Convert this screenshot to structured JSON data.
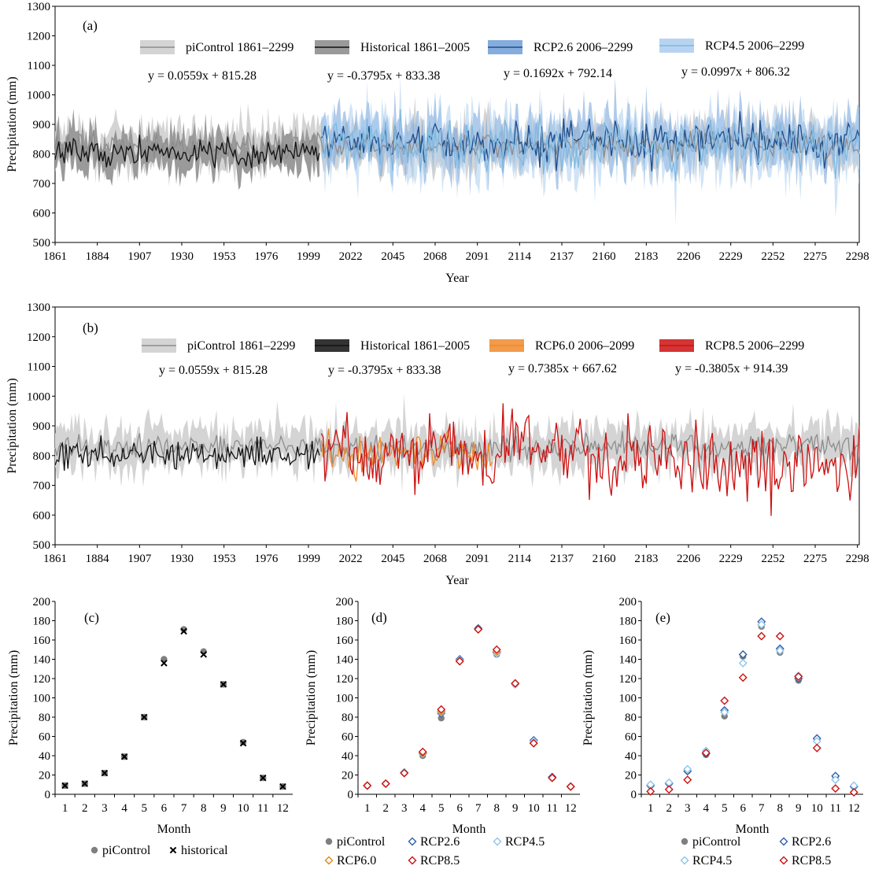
{
  "figure_description": "Precipitation time series and monthly climatology",
  "colors": {
    "picontrol_band": "#d4d4d4",
    "picontrol_line": "#8c8c8c",
    "historical_band": "#9a9a9a",
    "historical_line": "#111111",
    "rcp26_band": "#6f9fd8",
    "rcp26_line": "#1f4e8c",
    "rcp45_band": "#a9cdee",
    "rcp45_line": "#7fb8e0",
    "rcp60": "#f0892a",
    "rcp85": "#cc1111"
  },
  "chart_data": [
    {
      "id": "a",
      "type": "line",
      "panel_label": "(a)",
      "xlabel": "Year",
      "ylabel": "Precipitation (mm)",
      "xlim": [
        1861,
        2299
      ],
      "ylim": [
        500,
        1300
      ],
      "xticks": [
        1861,
        1884,
        1907,
        1930,
        1953,
        1976,
        1999,
        2022,
        2045,
        2068,
        2091,
        2114,
        2137,
        2160,
        2183,
        2206,
        2229,
        2252,
        2275,
        2298
      ],
      "yticks": [
        500,
        600,
        700,
        800,
        900,
        1000,
        1100,
        1200,
        1300
      ],
      "series": [
        {
          "key": "pic",
          "name": "piControl 1861–2299",
          "start": 1861,
          "end": 2299,
          "mean": 828,
          "sd": 22,
          "band_sd": 45,
          "seed": 11,
          "line_color": "#8c8c8c",
          "band_color": "#d4d4d4",
          "legend_style": "band",
          "band_opacity": 1.0
        },
        {
          "key": "his",
          "name": "Historical 1861–2005",
          "start": 1861,
          "end": 2005,
          "mean": 805,
          "sd": 24,
          "band_sd": 40,
          "seed": 23,
          "line_color": "#111111",
          "band_color": "#9a9a9a",
          "legend_style": "band",
          "band_opacity": 1.0
        },
        {
          "key": "r26",
          "name": "RCP2.6 2006–2299",
          "start": 2006,
          "end": 2299,
          "mean": 842,
          "sd": 35,
          "band_sd": 48,
          "seed": 37,
          "line_color": "#1f4e8c",
          "band_color": "#6f9fd8",
          "legend_style": "band",
          "band_opacity": 0.55
        },
        {
          "key": "r45",
          "name": "RCP4.5 2006–2299",
          "start": 2006,
          "end": 2299,
          "mean": 828,
          "sd": 45,
          "band_sd": 55,
          "seed": 53,
          "line_color": "#7fb8e0",
          "band_color": "#a9cdee",
          "legend_style": "band",
          "band_opacity": 0.55
        }
      ],
      "regression": [
        {
          "text": "y = 0.0559x + 815.28",
          "slope": 0.0559,
          "intercept": 815.28
        },
        {
          "text": "y = -0.3795x + 833.38",
          "slope": -0.3795,
          "intercept": 833.38
        },
        {
          "text": "y = 0.1692x + 792.14",
          "slope": 0.1692,
          "intercept": 792.14
        },
        {
          "text": "y = 0.0997x + 806.32",
          "slope": 0.0997,
          "intercept": 806.32
        }
      ]
    },
    {
      "id": "b",
      "type": "line",
      "panel_label": "(b)",
      "xlabel": "Year",
      "ylabel": "Precipitation (mm)",
      "xlim": [
        1861,
        2299
      ],
      "ylim": [
        500,
        1300
      ],
      "xticks": [
        1861,
        1884,
        1907,
        1930,
        1953,
        1976,
        1999,
        2022,
        2045,
        2068,
        2091,
        2114,
        2137,
        2160,
        2183,
        2206,
        2229,
        2252,
        2275,
        2298
      ],
      "yticks": [
        500,
        600,
        700,
        800,
        900,
        1000,
        1100,
        1200,
        1300
      ],
      "series": [
        {
          "key": "pic",
          "name": "piControl 1861–2299",
          "start": 1861,
          "end": 2299,
          "mean": 828,
          "sd": 22,
          "band_sd": 45,
          "seed": 11,
          "line_color": "#8c8c8c",
          "band_color": "#d4d4d4",
          "legend_style": "band",
          "band_opacity": 1.0
        },
        {
          "key": "his",
          "name": "Historical 1861–2005",
          "start": 1861,
          "end": 2005,
          "mean": 805,
          "sd": 24,
          "band_sd": 0,
          "seed": 23,
          "line_color": "#111111",
          "band_color": "#9a9a9a",
          "legend_style": "line",
          "band_opacity": 0
        },
        {
          "key": "r60",
          "name": "RCP6.0 2006–2099",
          "start": 2006,
          "end": 2099,
          "mean": 815,
          "sd": 38,
          "band_sd": 0,
          "seed": 71,
          "line_color": "#f0892a",
          "band_color": "#f0892a",
          "legend_style": "line",
          "band_opacity": 0
        },
        {
          "key": "r85",
          "name": "RCP8.5 2006–2299",
          "start": 2006,
          "end": 2299,
          "mean": 800,
          "sd": 60,
          "band_sd": 0,
          "seed": 89,
          "line_color": "#cc1111",
          "band_color": "#cc1111",
          "legend_style": "line",
          "band_opacity": 0
        }
      ],
      "regression": [
        {
          "text": "y = 0.0559x + 815.28",
          "slope": 0.0559,
          "intercept": 815.28
        },
        {
          "text": "y = -0.3795x + 833.38",
          "slope": -0.3795,
          "intercept": 833.38
        },
        {
          "text": "y = 0.7385x + 667.62",
          "slope": 0.7385,
          "intercept": 667.62
        },
        {
          "text": "y = -0.3805x + 914.39",
          "slope": -0.3805,
          "intercept": 914.39
        }
      ]
    },
    {
      "id": "c",
      "type": "scatter",
      "panel_label": "(c)",
      "xlabel": "Month",
      "ylabel": "Precipitation (mm)",
      "categories": [
        "1",
        "2",
        "3",
        "4",
        "5",
        "6",
        "7",
        "8",
        "9",
        "10",
        "11",
        "12"
      ],
      "ylim": [
        0,
        200
      ],
      "yticks": [
        0,
        20,
        40,
        60,
        80,
        100,
        120,
        140,
        160,
        180,
        200
      ],
      "series": [
        {
          "name": "piControl",
          "marker": "circle",
          "color": "#7f7f7f",
          "values": [
            9,
            11,
            22,
            39,
            80,
            140,
            171,
            148,
            114,
            54,
            17,
            8
          ]
        },
        {
          "name": "historical",
          "marker": "x",
          "color": "#000000",
          "values": [
            9,
            11,
            22,
            39,
            80,
            136,
            169,
            145,
            114,
            53,
            17,
            8
          ]
        }
      ]
    },
    {
      "id": "d",
      "type": "scatter",
      "panel_label": "(d)",
      "xlabel": "Month",
      "ylabel": "Precipitation (mm)",
      "categories": [
        "1",
        "2",
        "3",
        "4",
        "5",
        "6",
        "7",
        "8",
        "9",
        "10",
        "11",
        "12"
      ],
      "ylim": [
        0,
        200
      ],
      "yticks": [
        0,
        20,
        40,
        60,
        80,
        100,
        120,
        140,
        160,
        180,
        200
      ],
      "series": [
        {
          "name": "piControl",
          "marker": "circle",
          "color": "#7f7f7f",
          "values": [
            9,
            11,
            22,
            40,
            79,
            139,
            172,
            145,
            114,
            55,
            17,
            8
          ]
        },
        {
          "name": "RCP2.6",
          "marker": "diamond",
          "color": "#2f5fa8",
          "values": [
            9,
            11,
            22,
            42,
            84,
            140,
            172,
            147,
            115,
            56,
            18,
            8
          ]
        },
        {
          "name": "RCP4.5",
          "marker": "diamond",
          "color": "#8ec4ee",
          "values": [
            9,
            11,
            23,
            42,
            85,
            139,
            171,
            146,
            114,
            55,
            17,
            8
          ]
        },
        {
          "name": "RCP6.0",
          "marker": "diamond",
          "color": "#e0891a",
          "values": [
            9,
            11,
            22,
            43,
            86,
            138,
            171,
            148,
            115,
            53,
            17,
            8
          ]
        },
        {
          "name": "RCP8.5",
          "marker": "diamond",
          "color": "#cc1111",
          "values": [
            9,
            11,
            22,
            44,
            88,
            138,
            171,
            150,
            115,
            53,
            17,
            8
          ]
        }
      ]
    },
    {
      "id": "e",
      "type": "scatter",
      "panel_label": "(e)",
      "xlabel": "Month",
      "ylabel": "Precipitation (mm)",
      "categories": [
        "1",
        "2",
        "3",
        "4",
        "5",
        "6",
        "7",
        "8",
        "9",
        "10",
        "11",
        "12"
      ],
      "ylim": [
        0,
        200
      ],
      "yticks": [
        0,
        20,
        40,
        60,
        80,
        100,
        120,
        140,
        160,
        180,
        200
      ],
      "series": [
        {
          "name": "piControl",
          "marker": "circle",
          "color": "#7f7f7f",
          "values": [
            9,
            11,
            24,
            41,
            81,
            143,
            174,
            147,
            118,
            57,
            18,
            8
          ]
        },
        {
          "name": "RCP2.6",
          "marker": "diamond",
          "color": "#2f5fa8",
          "values": [
            9,
            11,
            24,
            42,
            87,
            145,
            179,
            151,
            120,
            58,
            19,
            8
          ]
        },
        {
          "name": "RCP4.5",
          "marker": "diamond",
          "color": "#8ec4ee",
          "values": [
            10,
            12,
            26,
            45,
            85,
            136,
            176,
            149,
            123,
            55,
            15,
            9
          ]
        },
        {
          "name": "RCP8.5",
          "marker": "diamond",
          "color": "#cc1111",
          "values": [
            3,
            5,
            15,
            43,
            97,
            121,
            164,
            164,
            122,
            48,
            6,
            2
          ]
        }
      ]
    }
  ]
}
